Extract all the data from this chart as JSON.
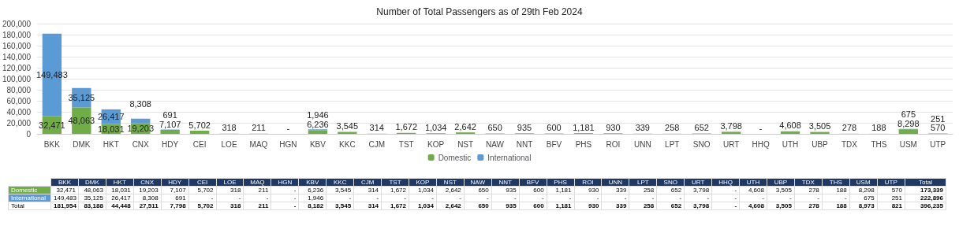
{
  "chart_data": {
    "type": "bar",
    "title": "Number of Total Passengers as of 29th Feb 2024",
    "stacked": true,
    "grid": "y",
    "legend": "bottom",
    "categories": [
      "BKK",
      "DMK",
      "HKT",
      "CNX",
      "HDY",
      "CEI",
      "LOE",
      "MAQ",
      "HGN",
      "KBV",
      "KKC",
      "CJM",
      "TST",
      "KOP",
      "NST",
      "NAW",
      "NNT",
      "BFV",
      "PHS",
      "ROI",
      "UNN",
      "LPT",
      "SNO",
      "URT",
      "HHQ",
      "UTH",
      "UBP",
      "TDX",
      "THS",
      "USM",
      "UTP"
    ],
    "ylim": [
      0,
      200000
    ],
    "yticks": [
      {
        "value": 0,
        "label": "0"
      },
      {
        "value": 20000,
        "label": "20,000"
      },
      {
        "value": 40000,
        "label": "40,000"
      },
      {
        "value": 60000,
        "label": "60,000"
      },
      {
        "value": 80000,
        "label": "80,000"
      },
      {
        "value": 100000,
        "label": "100,000"
      },
      {
        "value": 120000,
        "label": "120,000"
      },
      {
        "value": 140000,
        "label": "140,000"
      },
      {
        "value": 160000,
        "label": "160,000"
      },
      {
        "value": 180000,
        "label": "180,000"
      },
      {
        "value": 200000,
        "label": "200,000"
      }
    ],
    "series": [
      {
        "name": "Domestic",
        "color": "#70ad47",
        "values": [
          32471,
          48063,
          18031,
          19203,
          7107,
          5702,
          318,
          211,
          0,
          6236,
          3545,
          314,
          1672,
          1034,
          2642,
          650,
          935,
          600,
          1181,
          930,
          339,
          258,
          652,
          3798,
          0,
          4608,
          3505,
          278,
          188,
          8298,
          570
        ],
        "value_labels": [
          "32,471",
          "48,063",
          "18,031",
          "19,203",
          "7,107",
          "5,702",
          "318",
          "211",
          "-",
          "6,236",
          "3,545",
          "314",
          "1,672",
          "1,034",
          "2,642",
          "650",
          "935",
          "600",
          "1,181",
          "930",
          "339",
          "258",
          "652",
          "3,798",
          "-",
          "4,608",
          "3,505",
          "278",
          "188",
          "8,298",
          "570"
        ]
      },
      {
        "name": "International",
        "color": "#5b9bd5",
        "values": [
          149483,
          35125,
          26417,
          8308,
          691,
          null,
          null,
          null,
          null,
          1946,
          null,
          null,
          null,
          null,
          null,
          null,
          null,
          null,
          null,
          null,
          null,
          null,
          null,
          null,
          null,
          null,
          null,
          null,
          null,
          675,
          251
        ],
        "value_labels": [
          "149,483",
          "35,125",
          "26,417",
          "8,308",
          "691",
          "-",
          "-",
          "-",
          "-",
          "1,946",
          "-",
          "-",
          "-",
          "-",
          "-",
          "-",
          "-",
          "-",
          "-",
          "-",
          "-",
          "-",
          "-",
          "-",
          "-",
          "-",
          "-",
          "-",
          "-",
          "675",
          "251"
        ]
      }
    ],
    "annotations": [
      "Total",
      "173,339",
      "222,896",
      "396,235",
      "181,954",
      "83,188",
      "44,448",
      "27,511",
      "7,798",
      "5,702",
      "318",
      "211",
      "-",
      "8,182",
      "3,545",
      "314",
      "1,672",
      "1,034",
      "2,642",
      "650",
      "935",
      "600",
      "1,181",
      "930",
      "339",
      "258",
      "652",
      "3,798",
      "-",
      "4,608",
      "3,505",
      "278",
      "188",
      "8,973",
      "821"
    ]
  }
}
